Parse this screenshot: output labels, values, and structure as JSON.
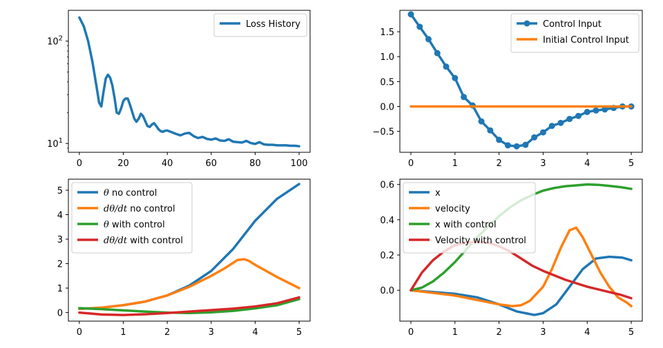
{
  "chart_data": [
    {
      "type": "line",
      "yscale": "log",
      "xlim": [
        -5,
        105
      ],
      "ylim": [
        8.2,
        200
      ],
      "xticks": [
        0,
        20,
        40,
        60,
        80,
        100
      ],
      "yticks": [
        {
          "value": 10,
          "base": "10",
          "exp": "1"
        },
        {
          "value": 100,
          "base": "10",
          "exp": "2"
        }
      ],
      "legend": "top-right",
      "grid": false,
      "series": [
        {
          "name": "Loss History",
          "color": "#1f77b4",
          "marker": false,
          "x": [
            0,
            2,
            4,
            6,
            8,
            9,
            10,
            11,
            12,
            13,
            14,
            15,
            16,
            17,
            18,
            19,
            20,
            21,
            22,
            23,
            24,
            25,
            26,
            27,
            28,
            29,
            30,
            31,
            32,
            33,
            34,
            35,
            36,
            37,
            38,
            39,
            40,
            42,
            44,
            46,
            48,
            50,
            52,
            54,
            56,
            58,
            60,
            62,
            64,
            66,
            68,
            70,
            72,
            74,
            76,
            78,
            80,
            82,
            84,
            86,
            88,
            90,
            92,
            94,
            96,
            98,
            100
          ],
          "y": [
            170,
            140,
            100,
            62,
            34,
            25,
            23,
            32,
            43,
            47,
            44,
            37,
            28,
            20,
            19.5,
            22,
            26,
            27.5,
            27.5,
            24,
            20.5,
            17.5,
            16.3,
            17.5,
            19.5,
            18.5,
            16.5,
            14.8,
            14.5,
            15.3,
            15.8,
            14.8,
            13.8,
            13.2,
            13.0,
            13.3,
            13.4,
            12.9,
            12.4,
            12.0,
            12.5,
            12.7,
            11.8,
            11.3,
            11.6,
            11.1,
            10.9,
            11.2,
            10.7,
            10.6,
            11.0,
            10.4,
            10.3,
            10.2,
            10.6,
            10.1,
            9.9,
            10.3,
            9.8,
            9.7,
            9.7,
            9.6,
            9.6,
            9.6,
            9.5,
            9.5,
            9.4
          ]
        }
      ]
    },
    {
      "type": "line",
      "xlim": [
        -0.25,
        5.25
      ],
      "ylim": [
        -0.92,
        1.93
      ],
      "xticks": [
        0,
        1,
        2,
        3,
        4,
        5
      ],
      "yticks": [
        -0.5,
        0.0,
        0.5,
        1.0,
        1.5
      ],
      "ytick_labels": [
        "−0.5",
        "0.0",
        "0.5",
        "1.0",
        "1.5"
      ],
      "legend": "top-right",
      "grid": false,
      "series": [
        {
          "name": "Control Input",
          "color": "#1f77b4",
          "marker": true,
          "x": [
            0,
            0.2,
            0.4,
            0.6,
            0.8,
            1.0,
            1.2,
            1.4,
            1.6,
            1.8,
            2.0,
            2.2,
            2.4,
            2.6,
            2.8,
            3.0,
            3.2,
            3.4,
            3.6,
            3.8,
            4.0,
            4.2,
            4.4,
            4.6,
            4.8,
            5.0
          ],
          "y": [
            1.85,
            1.6,
            1.35,
            1.07,
            0.8,
            0.57,
            0.19,
            0.02,
            -0.3,
            -0.48,
            -0.67,
            -0.78,
            -0.8,
            -0.77,
            -0.62,
            -0.52,
            -0.39,
            -0.33,
            -0.25,
            -0.19,
            -0.11,
            -0.08,
            -0.06,
            -0.03,
            0.0,
            0.0
          ]
        },
        {
          "name": "Initial Control Input",
          "color": "#ff7f0e",
          "marker": false,
          "x": [
            0,
            5
          ],
          "y": [
            0,
            0
          ]
        }
      ]
    },
    {
      "type": "line",
      "xlim": [
        -0.25,
        5.25
      ],
      "ylim": [
        -0.35,
        5.45
      ],
      "xticks": [
        0,
        1,
        2,
        3,
        4,
        5
      ],
      "yticks": [
        0,
        1,
        2,
        3,
        4,
        5
      ],
      "legend": "top-left",
      "grid": false,
      "series": [
        {
          "name_math": "θ",
          "name": " no control",
          "color": "#1f77b4",
          "x": [
            0,
            0.5,
            1,
            1.5,
            2,
            2.5,
            3,
            3.5,
            4,
            4.5,
            5
          ],
          "y": [
            0.15,
            0.2,
            0.3,
            0.45,
            0.7,
            1.1,
            1.7,
            2.6,
            3.75,
            4.65,
            5.25
          ]
        },
        {
          "name_math": "dθ/dt",
          "name": " no control",
          "color": "#ff7f0e",
          "x": [
            0,
            0.5,
            1,
            1.5,
            2,
            2.5,
            3,
            3.3,
            3.6,
            3.75,
            3.85,
            4,
            4.5,
            5
          ],
          "y": [
            0.15,
            0.2,
            0.3,
            0.45,
            0.7,
            1.05,
            1.5,
            1.8,
            2.15,
            2.18,
            2.12,
            1.95,
            1.45,
            1.0
          ]
        },
        {
          "name_math": "θ",
          "name": " with control",
          "color": "#2ca02c",
          "x": [
            0,
            0.5,
            1,
            1.5,
            2,
            2.5,
            3,
            3.5,
            4,
            4.5,
            5
          ],
          "y": [
            0.18,
            0.14,
            0.09,
            0.04,
            0.0,
            -0.02,
            0.01,
            0.07,
            0.17,
            0.3,
            0.55
          ]
        },
        {
          "name_math": "dθ/dt",
          "name": " with control",
          "color": "#d62728",
          "x": [
            0,
            0.5,
            1,
            1.5,
            2,
            2.5,
            3,
            3.5,
            4,
            4.5,
            5
          ],
          "y": [
            0.0,
            -0.08,
            -0.1,
            -0.07,
            -0.02,
            0.04,
            0.1,
            0.16,
            0.25,
            0.38,
            0.62
          ]
        }
      ]
    },
    {
      "type": "line",
      "xlim": [
        -0.25,
        5.25
      ],
      "ylim": [
        -0.175,
        0.63
      ],
      "xticks": [
        0,
        1,
        2,
        3,
        4,
        5
      ],
      "yticks": [
        0.0,
        0.2,
        0.4,
        0.6
      ],
      "ytick_labels": [
        "0.0",
        "0.2",
        "0.4",
        "0.6"
      ],
      "legend": "top-left",
      "grid": false,
      "series": [
        {
          "name": "x",
          "color": "#1f77b4",
          "x": [
            0,
            0.5,
            1,
            1.5,
            2,
            2.4,
            2.8,
            3.0,
            3.3,
            3.6,
            3.9,
            4.2,
            4.5,
            4.8,
            5
          ],
          "y": [
            0.0,
            -0.01,
            -0.02,
            -0.04,
            -0.08,
            -0.12,
            -0.14,
            -0.13,
            -0.08,
            0.02,
            0.12,
            0.18,
            0.19,
            0.185,
            0.17
          ]
        },
        {
          "name": "velocity",
          "color": "#ff7f0e",
          "x": [
            0,
            0.5,
            1,
            1.5,
            2,
            2.3,
            2.5,
            2.7,
            3.0,
            3.2,
            3.4,
            3.6,
            3.75,
            3.9,
            4.1,
            4.3,
            4.5,
            4.7,
            4.9,
            5
          ],
          "y": [
            0.0,
            -0.015,
            -0.03,
            -0.055,
            -0.08,
            -0.09,
            -0.085,
            -0.06,
            0.02,
            0.12,
            0.24,
            0.34,
            0.355,
            0.3,
            0.2,
            0.1,
            0.02,
            -0.04,
            -0.07,
            -0.09
          ]
        },
        {
          "name": "x with control",
          "color": "#2ca02c",
          "x": [
            0,
            0.25,
            0.5,
            0.75,
            1,
            1.25,
            1.5,
            1.75,
            2,
            2.25,
            2.5,
            2.75,
            3,
            3.25,
            3.5,
            3.75,
            4,
            4.25,
            4.5,
            4.75,
            5
          ],
          "y": [
            0.0,
            0.015,
            0.05,
            0.1,
            0.16,
            0.23,
            0.3,
            0.36,
            0.42,
            0.47,
            0.51,
            0.54,
            0.565,
            0.58,
            0.59,
            0.595,
            0.6,
            0.598,
            0.592,
            0.585,
            0.575
          ]
        },
        {
          "name": "Velocity with control",
          "color": "#d62728",
          "x": [
            0,
            0.25,
            0.5,
            0.75,
            1,
            1.25,
            1.5,
            1.75,
            2,
            2.25,
            2.5,
            2.75,
            3,
            3.25,
            3.5,
            3.75,
            4,
            4.25,
            4.5,
            4.75,
            5
          ],
          "y": [
            0.0,
            0.1,
            0.17,
            0.22,
            0.255,
            0.27,
            0.275,
            0.27,
            0.25,
            0.22,
            0.18,
            0.14,
            0.11,
            0.085,
            0.06,
            0.04,
            0.02,
            0.005,
            -0.01,
            -0.025,
            -0.045
          ]
        }
      ]
    }
  ]
}
